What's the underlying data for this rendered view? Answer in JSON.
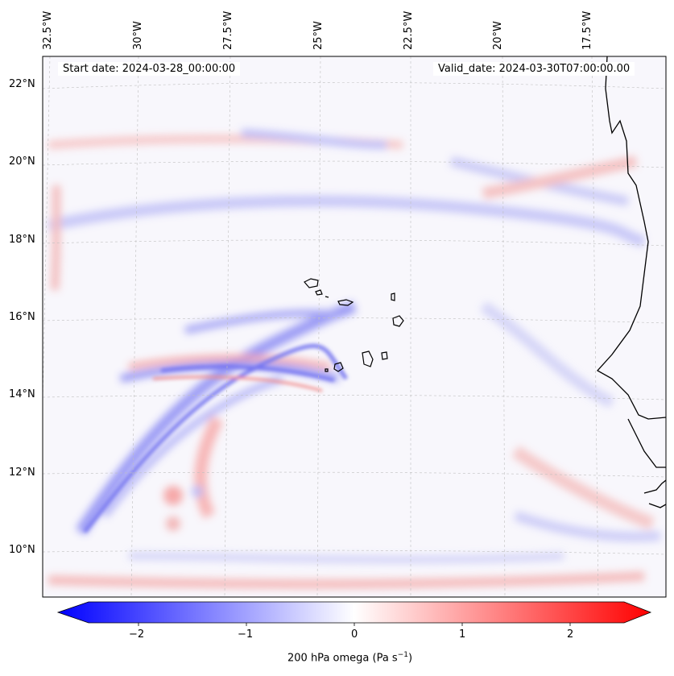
{
  "map": {
    "start_date": "Start date: 2024-03-28_00:00:00",
    "valid_date": "Valid_date: 2024-03-30T07:00:00.00",
    "lon_labels": [
      "32.5°W",
      "30°W",
      "27.5°W",
      "25°W",
      "22.5°W",
      "20°W",
      "17.5°W"
    ],
    "lat_labels": [
      "22°N",
      "20°N",
      "18°N",
      "16°N",
      "14°N",
      "12°N",
      "10°N"
    ],
    "gridlines": true,
    "colormap": "bwr"
  },
  "colorbar": {
    "ticks": [
      "−2",
      "−1",
      "0",
      "1",
      "2"
    ],
    "label_main": "200 hPa omega (Pa s",
    "label_sup": "−1",
    "label_end": ")",
    "min_color": "#0000ff",
    "mid_color": "#ffffff",
    "max_color": "#ff0000",
    "range": [
      -2.7,
      2.7
    ]
  }
}
